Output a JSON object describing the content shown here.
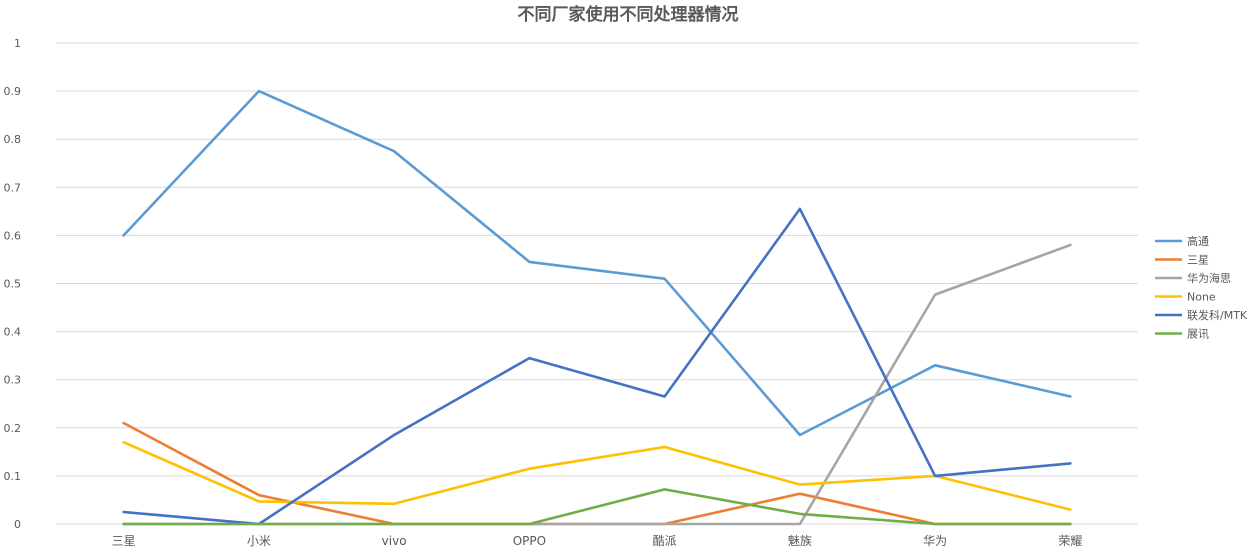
{
  "chart_data": {
    "type": "line",
    "title": "不同厂家使用不同处理器情况",
    "categories": [
      "三星",
      "小米",
      "vivo",
      "OPPO",
      "酷派",
      "魅族",
      "华为",
      "荣耀"
    ],
    "ylim": [
      0,
      1
    ],
    "yticks": [
      "0",
      "0.1",
      "0.2",
      "0.3",
      "0.4",
      "0.5",
      "0.6",
      "0.7",
      "0.8",
      "0.9",
      "1"
    ],
    "grid": true,
    "legend_position": "right",
    "series": [
      {
        "name": "高通",
        "color": "#5B9BD5",
        "values": [
          0.6,
          0.9,
          0.775,
          0.545,
          0.51,
          0.185,
          0.33,
          0.265
        ]
      },
      {
        "name": "三星",
        "color": "#ED7D31",
        "values": [
          0.21,
          0.06,
          0.0,
          0.0,
          0.0,
          0.063,
          0.0,
          0.0
        ]
      },
      {
        "name": "华为海思",
        "color": "#A5A5A5",
        "values": [
          0.0,
          0.0,
          0.0,
          0.0,
          0.0,
          0.0,
          0.477,
          0.58
        ]
      },
      {
        "name": "None",
        "color": "#FFC000",
        "values": [
          0.17,
          0.047,
          0.042,
          0.115,
          0.16,
          0.082,
          0.1,
          0.03
        ]
      },
      {
        "name": "联发科/MTK",
        "color": "#4472C4",
        "values": [
          0.025,
          0.0,
          0.185,
          0.345,
          0.265,
          0.655,
          0.1,
          0.126
        ]
      },
      {
        "name": "展讯",
        "color": "#70AD47",
        "values": [
          0.0,
          0.0,
          0.0,
          0.0,
          0.072,
          0.021,
          0.0,
          0.0
        ]
      }
    ]
  }
}
